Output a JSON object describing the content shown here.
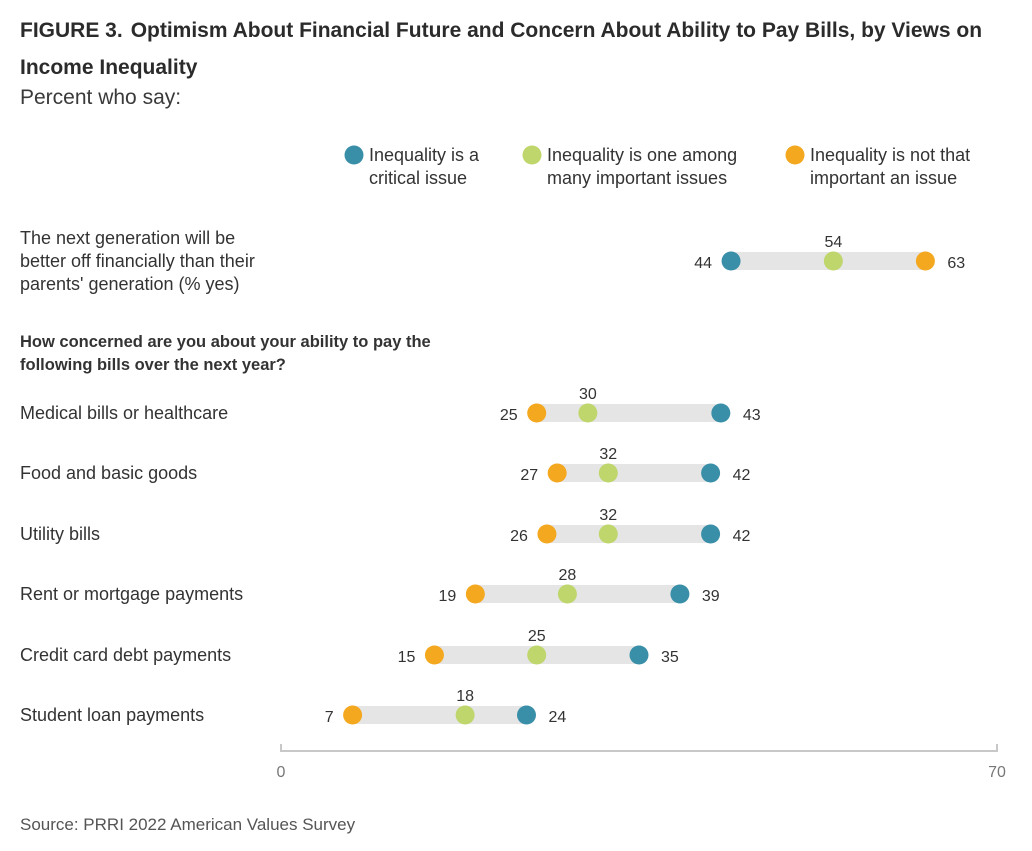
{
  "header": {
    "figure_label": "FIGURE 3.",
    "title": "Optimism About Financial Future and Concern About Ability to Pay Bills, by Views on Income Inequality",
    "subtitle": "Percent who say:"
  },
  "chart_data": {
    "type": "dumbbell",
    "xlim": [
      0,
      70
    ],
    "x_tick_labels": [
      "0",
      "70"
    ],
    "legend_placement": "top",
    "series": [
      {
        "key": "critical",
        "name_lines": [
          "Inequality is a",
          "critical issue"
        ],
        "color": "#3a8fa8"
      },
      {
        "key": "among",
        "name_lines": [
          "Inequality is one among",
          "many important issues"
        ],
        "color": "#bfd66c"
      },
      {
        "key": "notimportant",
        "name_lines": [
          "Inequality is not that",
          "important an issue"
        ],
        "color": "#f4a81f"
      }
    ],
    "section_heading_lines": [
      "How concerned are you about your ability to pay the",
      "following bills over the next year?"
    ],
    "rows": [
      {
        "label_lines": [
          "The next generation will be",
          "better off financially than their",
          "parents' generation (% yes)"
        ],
        "critical": 44,
        "among": 54,
        "notimportant": 63
      },
      {
        "label_lines": [
          "Medical bills or healthcare"
        ],
        "critical": 43,
        "among": 30,
        "notimportant": 25
      },
      {
        "label_lines": [
          "Food and basic goods"
        ],
        "critical": 42,
        "among": 32,
        "notimportant": 27
      },
      {
        "label_lines": [
          "Utility bills"
        ],
        "critical": 42,
        "among": 32,
        "notimportant": 26
      },
      {
        "label_lines": [
          "Rent or mortgage payments"
        ],
        "critical": 39,
        "among": 28,
        "notimportant": 19
      },
      {
        "label_lines": [
          "Credit card debt payments"
        ],
        "critical": 35,
        "among": 25,
        "notimportant": 15
      },
      {
        "label_lines": [
          "Student loan payments"
        ],
        "critical": 24,
        "among": 18,
        "notimportant": 7
      }
    ]
  },
  "footer": {
    "source": "Source: PRRI 2022 American Values Survey"
  },
  "colors": {
    "track": "#e5e5e5",
    "axis": "#c8c8c8"
  }
}
